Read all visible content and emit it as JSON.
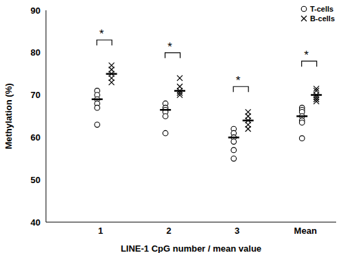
{
  "chart_data": {
    "type": "scatter",
    "categories": [
      "1",
      "2",
      "3",
      "Mean"
    ],
    "x_label": "LINE-1 CpG number / mean value",
    "y_label": "Methylation (%)",
    "ylim": [
      40,
      90
    ],
    "yticks": [
      40,
      50,
      60,
      70,
      80,
      90
    ],
    "legend": "upper right",
    "series": [
      {
        "name": "T-cells",
        "color": "#000000",
        "marker": "circle",
        "values": [
          [
            71,
            70,
            69,
            68,
            67,
            63
          ],
          [
            68,
            67,
            66.5,
            66,
            65,
            61
          ],
          [
            62,
            61,
            60,
            59,
            57,
            55
          ],
          [
            67,
            66.5,
            66,
            65,
            64,
            63.5,
            59.8
          ]
        ],
        "means": [
          69,
          66.5,
          60,
          65
        ]
      },
      {
        "name": "B-cells",
        "color": "#000000",
        "marker": "x",
        "values": [
          [
            77,
            76,
            75,
            74,
            73
          ],
          [
            74,
            72,
            71,
            70.5,
            70
          ],
          [
            66,
            65,
            64,
            63,
            62
          ],
          [
            71.5,
            71,
            70,
            69.5,
            69,
            68.5
          ]
        ],
        "means": [
          75,
          71,
          64,
          70
        ]
      }
    ],
    "significance": [
      {
        "category": "1",
        "y": 83,
        "label": "*"
      },
      {
        "category": "2",
        "y": 80,
        "label": "*"
      },
      {
        "category": "3",
        "y": 72,
        "label": "*"
      },
      {
        "category": "Mean",
        "y": 78,
        "label": "*"
      }
    ]
  }
}
